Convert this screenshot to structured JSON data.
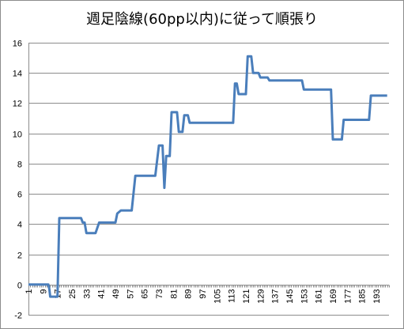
{
  "chart_data": {
    "type": "line",
    "title": "週足陰線(60pp以内)に従って順張り",
    "xlabel": "",
    "ylabel": "",
    "ylim": [
      -2,
      16
    ],
    "ytick_step": 2,
    "xlim": [
      1,
      200
    ],
    "x_ticks": [
      1,
      9,
      17,
      25,
      33,
      41,
      49,
      57,
      65,
      73,
      81,
      89,
      97,
      105,
      113,
      121,
      129,
      137,
      145,
      153,
      161,
      169,
      177,
      185,
      193
    ],
    "grid": "horizontal",
    "legend": "none",
    "line_color": "#4a7ebb",
    "series": [
      {
        "x": [
          1,
          12,
          12.5,
          13,
          16,
          17,
          18,
          30,
          31,
          32,
          33,
          34,
          38,
          40,
          41,
          49,
          50,
          52,
          58,
          60,
          71,
          73,
          75,
          76,
          77,
          78,
          79,
          80,
          81,
          83,
          84,
          86,
          87,
          89,
          90,
          114,
          115,
          116,
          117,
          121,
          122,
          124,
          125,
          127,
          128,
          129,
          130,
          133,
          134,
          135,
          136,
          137,
          152,
          153,
          168,
          169,
          174,
          175,
          188,
          189,
          190,
          191,
          199
        ],
        "y": [
          0,
          0,
          -0.3,
          -0.8,
          -0.8,
          -0.8,
          4.4,
          4.4,
          4.1,
          4.1,
          3.4,
          3.4,
          3.4,
          4.1,
          4.1,
          4.1,
          4.7,
          4.9,
          4.9,
          7.2,
          7.2,
          9.2,
          9.2,
          6.4,
          8.5,
          8.5,
          8.5,
          11.4,
          11.4,
          11.4,
          10.1,
          10.1,
          11.2,
          11.2,
          10.7,
          10.7,
          13.3,
          13.3,
          12.6,
          12.6,
          15.1,
          15.1,
          14.0,
          14.0,
          14.0,
          13.7,
          13.7,
          13.7,
          13.5,
          13.5,
          13.5,
          13.5,
          13.5,
          12.9,
          12.9,
          9.6,
          9.6,
          10.9,
          10.9,
          10.9,
          12.5,
          12.5,
          12.5
        ]
      }
    ]
  }
}
